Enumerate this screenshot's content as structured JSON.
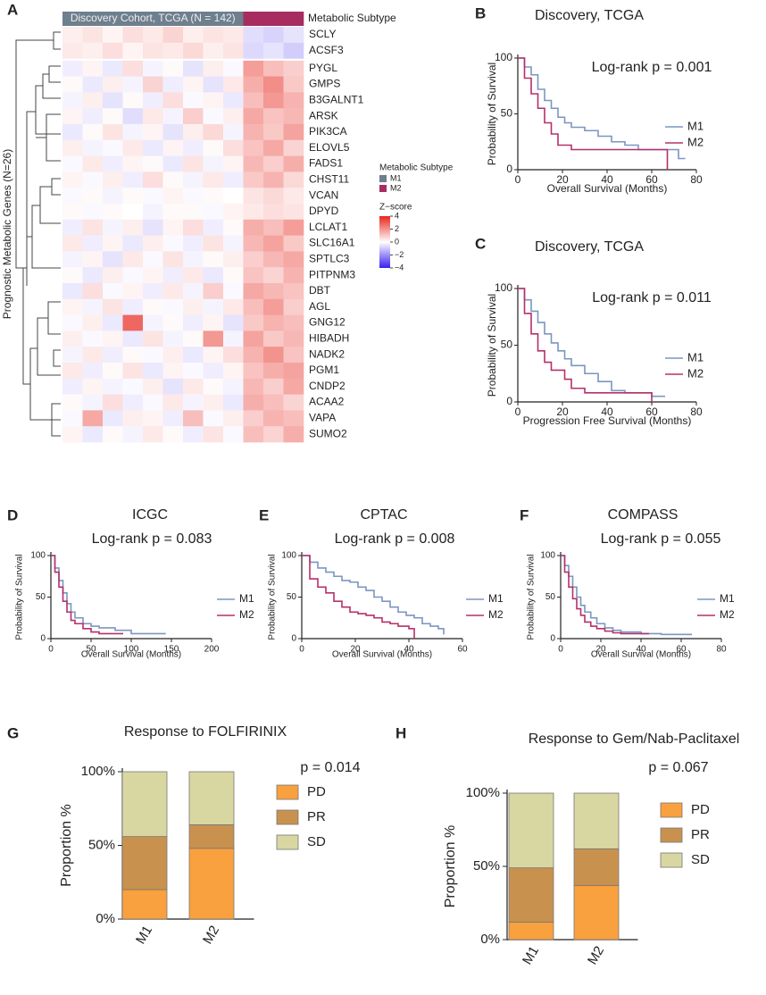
{
  "chart_data": [
    {
      "type": "heatmap",
      "panel": "A",
      "title": "Discovery Cohort, TCGA (N = 142)",
      "y_label": "Prognostic Metabolic Genes (N=26)",
      "legend_title": "Metabolic Subtype",
      "scale_title": "Z−score",
      "subtypes": [
        {
          "name": "M1",
          "color": "#6e7f8e"
        },
        {
          "name": "M2",
          "color": "#a72c60"
        }
      ],
      "column_subtype": [
        "M1",
        "M1",
        "M1",
        "M1",
        "M1",
        "M1",
        "M1",
        "M1",
        "M1",
        "M2",
        "M2",
        "M2"
      ],
      "colorscale": [
        "#3a1ff0",
        "#ffffff",
        "#e6261c"
      ],
      "zlim": [
        -4,
        4
      ],
      "zticks": [
        4,
        2,
        0,
        {
          "value": -2,
          "label": "−2"
        },
        {
          "value": -4,
          "label": "−4"
        }
      ],
      "rows": [
        "SCLY",
        "ACSF3",
        "PYGL",
        "GMPS",
        "B3GALNT1",
        "ARSK",
        "PIK3CA",
        "ELOVL5",
        "FADS1",
        "CHST11",
        "VCAN",
        "DPYD",
        "LCLAT1",
        "SLC16A1",
        "SPTLC3",
        "PITPNM3",
        "DBT",
        "AGL",
        "GNG12",
        "HIBADH",
        "NADK2",
        "PGM1",
        "CNDP2",
        "ACAA2",
        "VAPA",
        "SUMO2"
      ],
      "values": [
        [
          0.3,
          0.5,
          0.2,
          0.6,
          0.4,
          0.8,
          0.3,
          0.5,
          0.4,
          -0.6,
          -0.8,
          -0.5
        ],
        [
          0.4,
          0.3,
          0.6,
          0.2,
          0.5,
          0.4,
          0.7,
          0.3,
          0.5,
          -0.7,
          -0.5,
          -0.9
        ],
        [
          -0.3,
          0.2,
          -0.4,
          0.6,
          -0.2,
          0.1,
          -0.5,
          0.3,
          -0.1,
          1.8,
          1.2,
          0.9
        ],
        [
          0.1,
          -0.4,
          0.3,
          -0.2,
          0.8,
          -0.3,
          0.2,
          -0.5,
          0.4,
          1.5,
          2.1,
          1.0
        ],
        [
          -0.2,
          0.3,
          -0.5,
          0.1,
          -0.3,
          0.6,
          -0.1,
          0.2,
          -0.4,
          1.2,
          1.9,
          1.4
        ],
        [
          0.2,
          -0.3,
          0.1,
          -0.6,
          0.4,
          -0.2,
          0.9,
          -0.1,
          0.3,
          1.6,
          1.1,
          1.3
        ],
        [
          -0.4,
          0.1,
          0.5,
          -0.2,
          0.2,
          -0.5,
          0.3,
          0.7,
          -0.2,
          1.4,
          1.0,
          1.7
        ],
        [
          0.3,
          -0.2,
          -0.1,
          0.4,
          -0.4,
          0.2,
          -0.3,
          0.1,
          0.6,
          1.1,
          1.6,
          0.8
        ],
        [
          -0.1,
          0.4,
          -0.3,
          0.2,
          0.1,
          -0.4,
          0.5,
          -0.2,
          0.2,
          1.3,
          0.9,
          1.5
        ],
        [
          0.2,
          -0.1,
          0.3,
          -0.3,
          0.6,
          0.1,
          -0.2,
          0.4,
          -0.3,
          1.0,
          1.4,
          0.7
        ],
        [
          -0.1,
          0.1,
          -0.2,
          0.1,
          -0.1,
          0.2,
          -0.1,
          0.1,
          0.0,
          0.5,
          0.7,
          0.4
        ],
        [
          0.1,
          -0.1,
          0.1,
          0.0,
          -0.2,
          0.1,
          0.1,
          -0.1,
          0.2,
          0.4,
          0.6,
          0.5
        ],
        [
          -0.3,
          0.5,
          -0.2,
          0.3,
          -0.5,
          0.2,
          0.6,
          -0.3,
          0.1,
          1.5,
          1.2,
          1.8
        ],
        [
          0.4,
          -0.3,
          0.2,
          -0.4,
          0.3,
          -0.1,
          -0.3,
          0.5,
          -0.2,
          1.3,
          1.7,
          1.0
        ],
        [
          -0.2,
          0.2,
          -0.5,
          0.4,
          -0.1,
          0.5,
          -0.2,
          0.1,
          0.3,
          0.9,
          1.3,
          1.6
        ],
        [
          0.1,
          -0.4,
          0.3,
          -0.1,
          0.2,
          -0.3,
          0.4,
          -0.4,
          0.1,
          1.1,
          0.8,
          1.4
        ],
        [
          -0.4,
          0.6,
          -0.1,
          0.2,
          -0.3,
          0.4,
          -0.2,
          0.9,
          -0.1,
          1.6,
          1.3,
          1.1
        ],
        [
          0.2,
          -0.2,
          0.5,
          -0.3,
          0.1,
          -0.1,
          0.3,
          -0.2,
          0.4,
          1.2,
          1.8,
          0.9
        ],
        [
          -0.1,
          0.3,
          -0.4,
          2.8,
          -0.2,
          0.1,
          -0.3,
          0.2,
          -0.5,
          1.0,
          1.4,
          1.2
        ],
        [
          0.3,
          -0.1,
          0.2,
          -0.4,
          0.5,
          -0.2,
          0.1,
          1.9,
          -0.2,
          1.7,
          1.0,
          1.3
        ],
        [
          -0.2,
          0.4,
          -0.3,
          0.1,
          -0.1,
          0.3,
          -0.4,
          0.2,
          0.6,
          1.4,
          2.0,
          1.1
        ],
        [
          0.4,
          -0.3,
          0.1,
          0.5,
          -0.4,
          0.2,
          -0.1,
          -0.3,
          0.2,
          1.1,
          1.5,
          1.7
        ],
        [
          -0.3,
          0.2,
          -0.2,
          -0.1,
          0.3,
          -0.5,
          0.4,
          0.1,
          -0.2,
          1.3,
          0.9,
          1.6
        ],
        [
          0.1,
          -0.2,
          0.6,
          -0.3,
          -0.1,
          0.4,
          -0.2,
          0.3,
          -0.4,
          1.5,
          1.2,
          0.8
        ],
        [
          -0.1,
          1.6,
          -0.4,
          0.3,
          0.2,
          -0.3,
          1.2,
          -0.1,
          0.3,
          0.9,
          1.4,
          1.2
        ],
        [
          0.2,
          -0.4,
          0.1,
          -0.2,
          0.4,
          0.1,
          -0.3,
          0.5,
          -0.1,
          1.2,
          0.8,
          1.5
        ]
      ]
    },
    {
      "type": "km",
      "panel": "B",
      "title": "Discovery, TCGA",
      "annotation": "Log-rank p = 0.001",
      "x_label": "Overall Survival (Months)",
      "y_label": "Probability of Survival",
      "xlim": [
        0,
        80
      ],
      "ylim": [
        0,
        100
      ],
      "xticks": [
        0,
        20,
        40,
        60,
        80
      ],
      "yticks": [
        0,
        50,
        100
      ],
      "series": [
        {
          "name": "M1",
          "color": "#7b96c2",
          "x": [
            0,
            3,
            6,
            9,
            12,
            15,
            18,
            21,
            24,
            30,
            36,
            42,
            48,
            54,
            60,
            66,
            72,
            75
          ],
          "values": [
            100,
            92,
            85,
            72,
            62,
            55,
            47,
            42,
            38,
            35,
            30,
            25,
            22,
            18,
            18,
            18,
            10,
            10
          ]
        },
        {
          "name": "M2",
          "color": "#b5306a",
          "x": [
            0,
            3,
            6,
            9,
            12,
            15,
            18,
            24,
            30,
            66,
            67
          ],
          "values": [
            100,
            82,
            68,
            55,
            42,
            32,
            22,
            18,
            18,
            18,
            0
          ]
        }
      ]
    },
    {
      "type": "km",
      "panel": "C",
      "title": "Discovery, TCGA",
      "annotation": "Log-rank p = 0.011",
      "x_label": "Progression Free Survival (Months)",
      "y_label": "Probability of Survival",
      "xlim": [
        0,
        80
      ],
      "ylim": [
        0,
        100
      ],
      "xticks": [
        0,
        20,
        40,
        60,
        80
      ],
      "yticks": [
        0,
        50,
        100
      ],
      "series": [
        {
          "name": "M1",
          "color": "#7b96c2",
          "x": [
            0,
            3,
            6,
            9,
            12,
            15,
            18,
            21,
            24,
            30,
            36,
            42,
            48,
            60,
            66
          ],
          "values": [
            100,
            90,
            80,
            70,
            60,
            52,
            45,
            38,
            32,
            25,
            18,
            10,
            8,
            5,
            5
          ]
        },
        {
          "name": "M2",
          "color": "#b5306a",
          "x": [
            0,
            3,
            6,
            9,
            12,
            15,
            18,
            21,
            24,
            30,
            36,
            42,
            60
          ],
          "values": [
            100,
            78,
            60,
            45,
            35,
            28,
            28,
            20,
            12,
            8,
            8,
            8,
            0
          ]
        }
      ]
    },
    {
      "type": "km",
      "panel": "D",
      "title": "ICGC",
      "annotation": "Log-rank p = 0.083",
      "x_label": "Overall Survival (Months)",
      "y_label": "Probability of Survival",
      "xlim": [
        0,
        200
      ],
      "ylim": [
        0,
        100
      ],
      "xticks": [
        0,
        50,
        100,
        150,
        200
      ],
      "yticks": [
        0,
        50,
        100
      ],
      "series": [
        {
          "name": "M1",
          "color": "#7b96c2",
          "x": [
            0,
            5,
            10,
            15,
            20,
            25,
            30,
            40,
            50,
            60,
            80,
            100,
            143
          ],
          "values": [
            100,
            85,
            70,
            55,
            42,
            32,
            25,
            18,
            15,
            13,
            10,
            6,
            6
          ]
        },
        {
          "name": "M2",
          "color": "#b5306a",
          "x": [
            0,
            5,
            10,
            15,
            20,
            25,
            30,
            40,
            50,
            60,
            90
          ],
          "values": [
            100,
            80,
            62,
            45,
            32,
            22,
            18,
            12,
            8,
            6,
            6
          ]
        }
      ]
    },
    {
      "type": "km",
      "panel": "E",
      "title": "CPTAC",
      "annotation": "Log-rank p = 0.008",
      "x_label": "Overall Survival (Months)",
      "y_label": "Probability of Survival",
      "xlim": [
        0,
        60
      ],
      "ylim": [
        0,
        100
      ],
      "xticks": [
        0,
        20,
        40,
        60
      ],
      "yticks": [
        0,
        50,
        100
      ],
      "series": [
        {
          "name": "M1",
          "color": "#7b96c2",
          "x": [
            0,
            3,
            6,
            9,
            12,
            15,
            18,
            21,
            24,
            27,
            30,
            33,
            36,
            39,
            42,
            45,
            48,
            51,
            53
          ],
          "values": [
            100,
            92,
            85,
            80,
            75,
            70,
            68,
            62,
            58,
            50,
            45,
            38,
            32,
            28,
            25,
            18,
            15,
            12,
            5
          ]
        },
        {
          "name": "M2",
          "color": "#b5306a",
          "x": [
            0,
            3,
            6,
            9,
            12,
            15,
            18,
            21,
            24,
            27,
            30,
            33,
            36,
            40,
            42
          ],
          "values": [
            100,
            72,
            62,
            55,
            45,
            38,
            32,
            30,
            28,
            25,
            20,
            18,
            15,
            12,
            0
          ]
        }
      ]
    },
    {
      "type": "km",
      "panel": "F",
      "title": "COMPASS",
      "annotation": "Log-rank p = 0.055",
      "x_label": "Overall Survival (Months)",
      "y_label": "Probability of Survival",
      "xlim": [
        0,
        80
      ],
      "ylim": [
        0,
        100
      ],
      "xticks": [
        0,
        20,
        40,
        60,
        80
      ],
      "yticks": [
        0,
        50,
        100
      ],
      "series": [
        {
          "name": "M1",
          "color": "#7b96c2",
          "x": [
            0,
            2,
            4,
            6,
            8,
            10,
            12,
            15,
            18,
            22,
            26,
            30,
            40,
            50,
            65
          ],
          "values": [
            100,
            88,
            75,
            62,
            50,
            40,
            32,
            25,
            18,
            13,
            10,
            8,
            6,
            5,
            4
          ]
        },
        {
          "name": "M2",
          "color": "#b5306a",
          "x": [
            0,
            2,
            4,
            6,
            8,
            10,
            12,
            15,
            18,
            22,
            26,
            30,
            44
          ],
          "values": [
            100,
            80,
            62,
            48,
            36,
            28,
            20,
            15,
            12,
            9,
            7,
            6,
            6
          ]
        }
      ]
    },
    {
      "type": "stacked_bar",
      "panel": "G",
      "title": "Response to FOLFIRINIX",
      "annotation": "p = 0.014",
      "y_label": "Proportion %",
      "categories": [
        "M1",
        "M2"
      ],
      "ylim": [
        0,
        100
      ],
      "yticks": [
        {
          "value": 0,
          "label": "0%"
        },
        {
          "value": 50,
          "label": "50%"
        },
        {
          "value": 100,
          "label": "100%"
        }
      ],
      "series": [
        {
          "name": "PD",
          "color": "#f9a03f",
          "values": [
            20,
            48
          ]
        },
        {
          "name": "PR",
          "color": "#c8924e",
          "values": [
            36,
            16
          ]
        },
        {
          "name": "SD",
          "color": "#d8d7a2",
          "values": [
            44,
            36
          ]
        }
      ]
    },
    {
      "type": "stacked_bar",
      "panel": "H",
      "title": "Response to Gem/Nab-Paclitaxel",
      "annotation": "p = 0.067",
      "y_label": "Proportion %",
      "categories": [
        "M1",
        "M2"
      ],
      "ylim": [
        0,
        100
      ],
      "yticks": [
        {
          "value": 0,
          "label": "0%"
        },
        {
          "value": 50,
          "label": "50%"
        },
        {
          "value": 100,
          "label": "100%"
        }
      ],
      "series": [
        {
          "name": "PD",
          "color": "#f9a03f",
          "values": [
            12,
            37
          ]
        },
        {
          "name": "PR",
          "color": "#c8924e",
          "values": [
            37,
            25
          ]
        },
        {
          "name": "SD",
          "color": "#d8d7a2",
          "values": [
            51,
            38
          ]
        }
      ]
    }
  ]
}
